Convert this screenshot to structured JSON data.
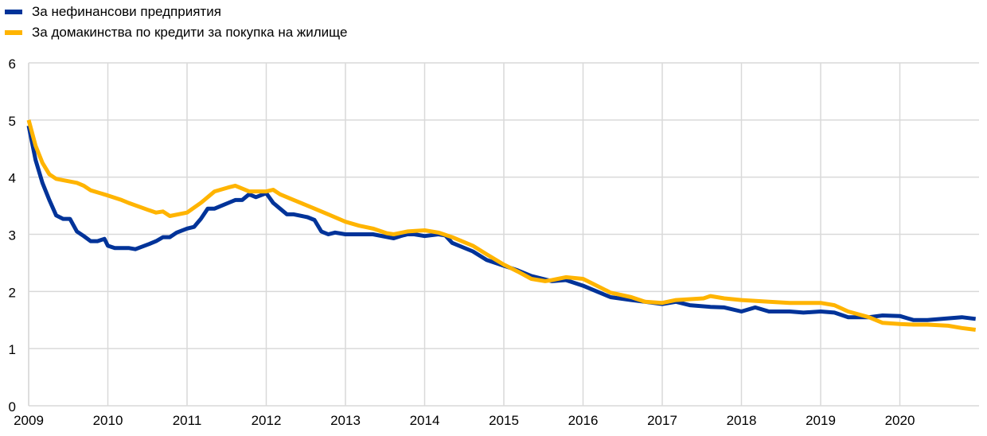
{
  "chart_data": {
    "type": "line",
    "title": "",
    "xlabel": "",
    "ylabel": "",
    "ylim": [
      0,
      6
    ],
    "xlim": [
      "2009-01",
      "2020-12"
    ],
    "yticks": [
      "0",
      "1",
      "2",
      "3",
      "4",
      "5",
      "6"
    ],
    "xticks": [
      "2009",
      "2010",
      "2011",
      "2012",
      "2013",
      "2014",
      "2015",
      "2016",
      "2017",
      "2018",
      "2019",
      "2020"
    ],
    "grid": true,
    "legend_position": "top-left",
    "series": [
      {
        "name": "За нефинансови предприятия",
        "color": "#003399",
        "x": [
          "2009-01",
          "2009-02",
          "2009-03",
          "2009-04",
          "2009-05",
          "2009-06",
          "2009-07",
          "2009-08",
          "2009-09",
          "2009-10",
          "2009-11",
          "2009-12",
          "2010-01",
          "2010-02",
          "2010-04",
          "2010-05",
          "2010-07",
          "2010-08",
          "2010-09",
          "2010-10",
          "2010-11",
          "2011-01",
          "2011-02",
          "2011-03",
          "2011-04",
          "2011-05",
          "2011-07",
          "2011-08",
          "2011-09",
          "2011-10",
          "2011-11",
          "2012-01",
          "2012-02",
          "2012-03",
          "2012-04",
          "2012-05",
          "2012-07",
          "2012-08",
          "2012-09",
          "2012-10",
          "2012-11",
          "2013-01",
          "2013-03",
          "2013-05",
          "2013-08",
          "2013-09",
          "2013-10",
          "2013-11",
          "2014-01",
          "2014-03",
          "2014-04",
          "2014-05",
          "2014-08",
          "2014-10",
          "2015-01",
          "2015-03",
          "2015-05",
          "2015-08",
          "2015-10",
          "2016-01",
          "2016-03",
          "2016-05",
          "2016-08",
          "2016-10",
          "2017-01",
          "2017-03",
          "2017-05",
          "2017-08",
          "2017-10",
          "2018-01",
          "2018-03",
          "2018-05",
          "2018-08",
          "2018-10",
          "2019-01",
          "2019-03",
          "2019-05",
          "2019-08",
          "2019-10",
          "2020-01",
          "2020-03",
          "2020-05",
          "2020-08",
          "2020-10",
          "2020-12"
        ],
        "y": [
          4.9,
          4.3,
          3.9,
          3.6,
          3.33,
          3.27,
          3.27,
          3.05,
          2.97,
          2.88,
          2.88,
          2.92,
          2.8,
          2.76,
          2.76,
          2.74,
          2.83,
          2.88,
          2.95,
          2.95,
          3.03,
          3.1,
          3.13,
          3.27,
          3.45,
          3.45,
          3.55,
          3.6,
          3.6,
          3.7,
          3.65,
          3.72,
          3.55,
          3.45,
          3.35,
          3.35,
          3.3,
          3.25,
          3.05,
          3.0,
          3.03,
          3.0,
          3.0,
          3.0,
          2.93,
          2.97,
          3.0,
          3.0,
          2.97,
          3.0,
          2.98,
          2.85,
          2.7,
          2.55,
          2.45,
          2.37,
          2.27,
          2.18,
          2.2,
          2.1,
          2.0,
          1.9,
          1.85,
          1.82,
          1.78,
          1.82,
          1.76,
          1.73,
          1.72,
          1.65,
          1.72,
          1.65,
          1.65,
          1.63,
          1.65,
          1.63,
          1.55,
          1.55,
          1.58,
          1.57,
          1.5,
          1.5,
          1.53,
          1.55,
          1.52
        ]
      },
      {
        "name": "За домакинства по кредити за покупка на жилище",
        "color": "#FFB400",
        "x": [
          "2009-01",
          "2009-02",
          "2009-03",
          "2009-04",
          "2009-05",
          "2009-08",
          "2009-09",
          "2009-10",
          "2010-01",
          "2010-03",
          "2010-04",
          "2010-07",
          "2010-08",
          "2010-09",
          "2010-10",
          "2011-01",
          "2011-03",
          "2011-05",
          "2011-07",
          "2011-08",
          "2011-10",
          "2012-01",
          "2012-02",
          "2012-03",
          "2012-05",
          "2012-08",
          "2012-10",
          "2013-01",
          "2013-03",
          "2013-05",
          "2013-07",
          "2013-08",
          "2013-10",
          "2014-01",
          "2014-03",
          "2014-05",
          "2014-08",
          "2014-10",
          "2015-01",
          "2015-03",
          "2015-05",
          "2015-07",
          "2015-08",
          "2015-10",
          "2016-01",
          "2016-03",
          "2016-05",
          "2016-08",
          "2016-10",
          "2017-01",
          "2017-03",
          "2017-07",
          "2017-08",
          "2017-10",
          "2018-01",
          "2018-05",
          "2018-08",
          "2019-01",
          "2019-03",
          "2019-05",
          "2019-08",
          "2019-10",
          "2020-01",
          "2020-03",
          "2020-05",
          "2020-08",
          "2020-10",
          "2020-12"
        ],
        "y": [
          5.0,
          4.55,
          4.25,
          4.05,
          3.97,
          3.9,
          3.85,
          3.77,
          3.68,
          3.6,
          3.55,
          3.42,
          3.38,
          3.4,
          3.32,
          3.38,
          3.55,
          3.75,
          3.82,
          3.85,
          3.75,
          3.75,
          3.78,
          3.7,
          3.6,
          3.45,
          3.35,
          3.22,
          3.15,
          3.1,
          3.02,
          3.0,
          3.05,
          3.07,
          3.03,
          2.95,
          2.8,
          2.65,
          2.47,
          2.35,
          2.22,
          2.18,
          2.2,
          2.25,
          2.22,
          2.1,
          1.98,
          1.9,
          1.82,
          1.8,
          1.85,
          1.88,
          1.92,
          1.88,
          1.85,
          1.82,
          1.8,
          1.8,
          1.76,
          1.65,
          1.55,
          1.45,
          1.43,
          1.42,
          1.42,
          1.4,
          1.36,
          1.33
        ]
      }
    ]
  }
}
